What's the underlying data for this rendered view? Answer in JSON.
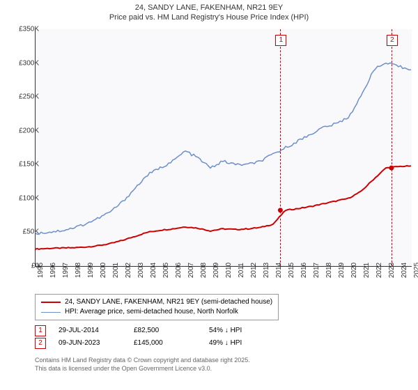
{
  "title": {
    "line1": "24, SANDY LANE, FAKENHAM, NR21 9EY",
    "line2": "Price paid vs. HM Land Registry's House Price Index (HPI)"
  },
  "chart": {
    "type": "line",
    "background_color": "#f9f9fc",
    "axis_color": "#333333",
    "ylabel_prefix": "£",
    "ylim": [
      0,
      350000
    ],
    "ytick_step": 50000,
    "yticks": [
      "£0",
      "£50K",
      "£100K",
      "£150K",
      "£200K",
      "£250K",
      "£300K",
      "£350K"
    ],
    "x_years": [
      1995,
      1996,
      1997,
      1998,
      1999,
      2000,
      2001,
      2002,
      2003,
      2004,
      2005,
      2006,
      2007,
      2008,
      2009,
      2010,
      2011,
      2012,
      2013,
      2014,
      2015,
      2016,
      2017,
      2018,
      2019,
      2020,
      2021,
      2022,
      2023,
      2024,
      2025
    ],
    "series": [
      {
        "name": "price_paid",
        "label": "24, SANDY LANE, FAKENHAM, NR21 9EY (semi-detached house)",
        "color": "#cc0000",
        "line_width": 2,
        "values": [
          25000,
          26000,
          26500,
          27000,
          28000,
          30000,
          33000,
          38000,
          44000,
          50000,
          53000,
          55000,
          58000,
          56000,
          52000,
          55000,
          54000,
          55000,
          57000,
          62000,
          82500,
          85000,
          88000,
          92000,
          96000,
          100000,
          110000,
          128000,
          145000,
          147000,
          148000
        ]
      },
      {
        "name": "hpi",
        "label": "HPI: Average price, semi-detached house, North Norfolk",
        "color": "#6b8fc9",
        "line_width": 1.5,
        "values": [
          48000,
          50000,
          52000,
          56000,
          62000,
          70000,
          80000,
          95000,
          115000,
          135000,
          145000,
          155000,
          170000,
          160000,
          145000,
          155000,
          150000,
          150000,
          155000,
          165000,
          175000,
          185000,
          195000,
          205000,
          210000,
          220000,
          250000,
          290000,
          300000,
          295000,
          290000
        ]
      }
    ],
    "markers": [
      {
        "id": "1",
        "date": "29-JUL-2014",
        "year_frac": 2014.58,
        "price": "£82,500",
        "hpi_delta": "54% ↓ HPI",
        "price_val": 82500
      },
      {
        "id": "2",
        "date": "09-JUN-2023",
        "year_frac": 2023.44,
        "price": "£145,000",
        "hpi_delta": "49% ↓ HPI",
        "price_val": 145000
      }
    ]
  },
  "footer": {
    "line1": "Contains HM Land Registry data © Crown copyright and database right 2025.",
    "line2": "This data is licensed under the Open Government Licence v3.0."
  }
}
